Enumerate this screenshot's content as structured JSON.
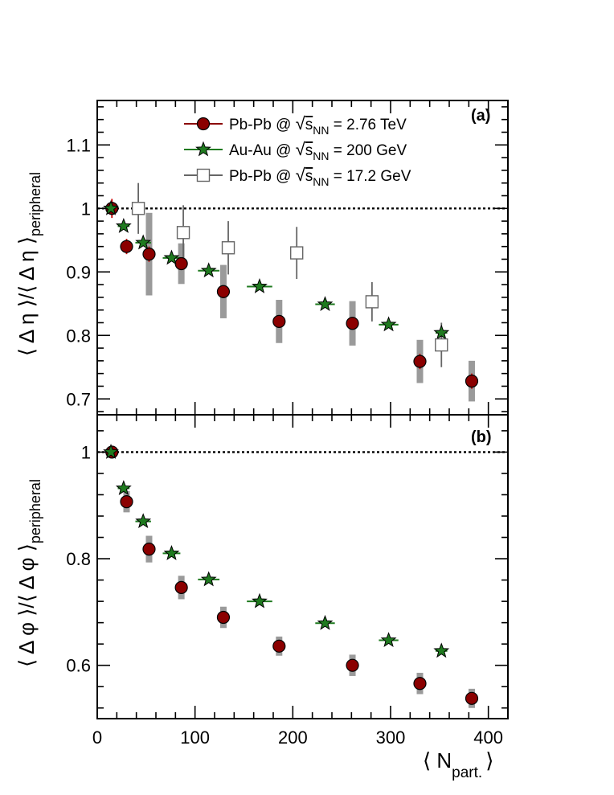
{
  "chart_data": [
    {
      "panel": "(a)",
      "type": "scatter",
      "ylabel": {
        "main": "⟨ Δ η ⟩/⟨ Δ η ⟩",
        "sub": "peripheral"
      },
      "xlim": [
        0,
        420
      ],
      "ylim": [
        0.675,
        1.17
      ],
      "yticks": [
        0.7,
        0.8,
        0.9,
        1.0,
        1.1
      ],
      "yticklabels": [
        "0.7",
        "0.8",
        "0.9",
        "1",
        "1.1"
      ],
      "reference_line": 1.0,
      "series": [
        {
          "key": "pbpb276",
          "marker": "circle",
          "color": "#8b0000",
          "name": "Pb-Pb @ ",
          "energy": " = 2.76 TeV",
          "points": [
            {
              "x": 15,
              "y": 1.0,
              "err": 0.015,
              "sys": 0.0
            },
            {
              "x": 30,
              "y": 0.94,
              "err": 0.012,
              "sys": 0.0
            },
            {
              "x": 53,
              "y": 0.928,
              "err": 0.012,
              "sys": 0.065
            },
            {
              "x": 86,
              "y": 0.913,
              "err": 0.01,
              "sys": 0.032
            },
            {
              "x": 129,
              "y": 0.869,
              "err": 0.01,
              "sys": 0.042
            },
            {
              "x": 186,
              "y": 0.822,
              "err": 0.01,
              "sys": 0.034
            },
            {
              "x": 261,
              "y": 0.819,
              "err": 0.01,
              "sys": 0.035
            },
            {
              "x": 330,
              "y": 0.759,
              "err": 0.012,
              "sys": 0.034
            },
            {
              "x": 383,
              "y": 0.728,
              "err": 0.012,
              "sys": 0.032
            }
          ]
        },
        {
          "key": "auau200",
          "marker": "star",
          "color": "#1f7a1f",
          "name": "Au-Au @ ",
          "energy": " = 200 GeV",
          "points": [
            {
              "x": 14,
              "y": 1.0,
              "xerr": 5
            },
            {
              "x": 27,
              "y": 0.972,
              "xerr": 6
            },
            {
              "x": 47,
              "y": 0.946,
              "xerr": 8
            },
            {
              "x": 76,
              "y": 0.922,
              "xerr": 9
            },
            {
              "x": 114,
              "y": 0.902,
              "xerr": 11
            },
            {
              "x": 166,
              "y": 0.877,
              "xerr": 13
            },
            {
              "x": 233,
              "y": 0.849,
              "xerr": 10
            },
            {
              "x": 298,
              "y": 0.817,
              "xerr": 10
            },
            {
              "x": 352,
              "y": 0.804,
              "xerr": 6
            }
          ]
        },
        {
          "key": "pbpb172",
          "marker": "open-square",
          "color": "#666666",
          "name": "Pb-Pb @ ",
          "energy": " = 17.2 GeV",
          "points": [
            {
              "x": 42,
              "y": 1.0,
              "err": 0.04
            },
            {
              "x": 88,
              "y": 0.962,
              "err": 0.043
            },
            {
              "x": 134,
              "y": 0.938,
              "err": 0.042
            },
            {
              "x": 204,
              "y": 0.93,
              "err": 0.041
            },
            {
              "x": 281,
              "y": 0.853,
              "err": 0.031
            },
            {
              "x": 352,
              "y": 0.785,
              "err": 0.035
            }
          ]
        }
      ],
      "legend_sqrt_symbol": "√",
      "legend_s": "s",
      "legend_sub": "NN"
    },
    {
      "panel": "(b)",
      "type": "scatter",
      "ylabel": {
        "main": "⟨ Δ φ ⟩/⟨ Δ φ ⟩",
        "sub": "peripheral"
      },
      "xlim": [
        0,
        420
      ],
      "ylim": [
        0.5,
        1.07
      ],
      "yticks": [
        0.6,
        0.8,
        1.0
      ],
      "yticklabels": [
        "0.6",
        "0.8",
        "1"
      ],
      "reference_line": 1.0,
      "series": [
        {
          "key": "pbpb276",
          "marker": "circle",
          "color": "#8b0000",
          "name": "Pb-Pb @ ",
          "energy": " = 2.76 TeV",
          "points": [
            {
              "x": 15,
              "y": 1.0,
              "err": 0.008,
              "sys": 0.0
            },
            {
              "x": 30,
              "y": 0.907,
              "err": 0.008,
              "sys": 0.02
            },
            {
              "x": 53,
              "y": 0.818,
              "err": 0.008,
              "sys": 0.025
            },
            {
              "x": 86,
              "y": 0.746,
              "err": 0.008,
              "sys": 0.022
            },
            {
              "x": 129,
              "y": 0.69,
              "err": 0.008,
              "sys": 0.02
            },
            {
              "x": 186,
              "y": 0.636,
              "err": 0.008,
              "sys": 0.018
            },
            {
              "x": 261,
              "y": 0.6,
              "err": 0.008,
              "sys": 0.02
            },
            {
              "x": 330,
              "y": 0.566,
              "err": 0.008,
              "sys": 0.02
            },
            {
              "x": 383,
              "y": 0.538,
              "err": 0.008,
              "sys": 0.018
            }
          ]
        },
        {
          "key": "auau200",
          "marker": "star",
          "color": "#1f7a1f",
          "name": "Au-Au @ ",
          "energy": " = 200 GeV",
          "points": [
            {
              "x": 14,
              "y": 1.0,
              "xerr": 5
            },
            {
              "x": 27,
              "y": 0.932,
              "xerr": 6
            },
            {
              "x": 47,
              "y": 0.87,
              "xerr": 8
            },
            {
              "x": 76,
              "y": 0.81,
              "xerr": 9
            },
            {
              "x": 114,
              "y": 0.761,
              "xerr": 11
            },
            {
              "x": 166,
              "y": 0.72,
              "xerr": 13
            },
            {
              "x": 233,
              "y": 0.679,
              "xerr": 10
            },
            {
              "x": 298,
              "y": 0.647,
              "xerr": 10
            },
            {
              "x": 352,
              "y": 0.627,
              "xerr": 6
            }
          ]
        }
      ]
    }
  ],
  "xaxis": {
    "ticks": [
      0,
      100,
      200,
      300,
      400
    ],
    "ticklabels": [
      "0",
      "100",
      "200",
      "300",
      "400"
    ],
    "label_main": "⟨ N",
    "label_sub": "part.",
    "label_close": "⟩"
  }
}
